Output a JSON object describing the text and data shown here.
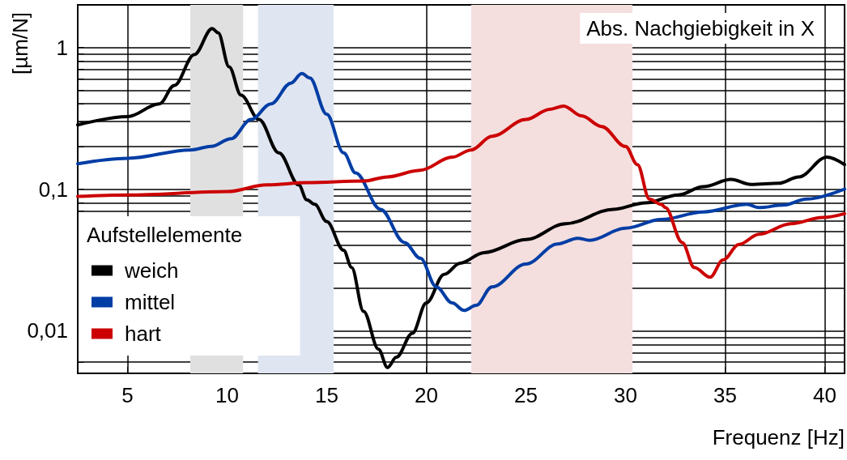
{
  "chart_data": {
    "type": "line",
    "xlabel": "Frequenz [Hz]",
    "ylabel": "[µm/N]",
    "legend_title": "Aufstellelemente",
    "annotations": [
      "Abs. Nachgiebigkeit in X"
    ],
    "xlim": [
      2.5,
      41
    ],
    "xticks": [
      5,
      10,
      15,
      20,
      25,
      30,
      35,
      40
    ],
    "ylim": [
      0.005,
      2
    ],
    "log": "y",
    "yticks": [
      {
        "value": 0.006,
        "label": null
      },
      {
        "value": 0.007,
        "label": null
      },
      {
        "value": 0.008,
        "label": null
      },
      {
        "value": 0.009,
        "label": null
      },
      {
        "value": 0.01,
        "label": "0,01"
      },
      {
        "value": 0.02,
        "label": null
      },
      {
        "value": 0.03,
        "label": null
      },
      {
        "value": 0.04,
        "label": null
      },
      {
        "value": 0.05,
        "label": null
      },
      {
        "value": 0.06,
        "label": null
      },
      {
        "value": 0.07,
        "label": null
      },
      {
        "value": 0.08,
        "label": null
      },
      {
        "value": 0.09,
        "label": null
      },
      {
        "value": 0.1,
        "label": "0,1"
      },
      {
        "value": 0.2,
        "label": null
      },
      {
        "value": 0.3,
        "label": null
      },
      {
        "value": 0.4,
        "label": null
      },
      {
        "value": 0.5,
        "label": null
      },
      {
        "value": 0.6,
        "label": null
      },
      {
        "value": 0.7,
        "label": null
      },
      {
        "value": 0.8,
        "label": null
      },
      {
        "value": 0.9,
        "label": null
      },
      {
        "value": 1,
        "label": "1"
      }
    ],
    "grid": true,
    "legend": "bottom left",
    "marker": "none",
    "line_style": "solid",
    "bands": [
      {
        "axis": "x",
        "from": 8.15,
        "to": 10.8,
        "color": "#e0e0e0"
      },
      {
        "axis": "x",
        "from": 11.55,
        "to": 15.35,
        "color": "#dfe5f1"
      },
      {
        "axis": "x",
        "from": 22.25,
        "to": 30.35,
        "color": "#f5dede"
      }
    ],
    "series": [
      {
        "name": "weich",
        "color": "#000000",
        "x": [
          2.5,
          5,
          6.6,
          7.35,
          8.35,
          9.25,
          9.55,
          10.1,
          10.7,
          11.6,
          12.6,
          13.6,
          14.0,
          14.4,
          15.0,
          15.85,
          16.25,
          16.85,
          17.6,
          18.05,
          18.5,
          19.3,
          20.0,
          20.9,
          21.7,
          22.9,
          25.0,
          27.0,
          29.4,
          31.0,
          32.65,
          33.9,
          35.3,
          36.3,
          37.7,
          38.7,
          40.1,
          41.0
        ],
        "values": [
          0.284,
          0.325,
          0.4,
          0.54,
          0.89,
          1.36,
          1.27,
          0.73,
          0.46,
          0.31,
          0.18,
          0.107,
          0.084,
          0.078,
          0.059,
          0.037,
          0.028,
          0.0137,
          0.0074,
          0.0055,
          0.0065,
          0.0096,
          0.0157,
          0.025,
          0.03,
          0.0356,
          0.044,
          0.057,
          0.072,
          0.08,
          0.091,
          0.104,
          0.117,
          0.108,
          0.11,
          0.122,
          0.168,
          0.149
        ]
      },
      {
        "name": "mittel",
        "color": "#003da5",
        "x": [
          2.5,
          5,
          8.15,
          9.2,
          10.2,
          11.2,
          12.2,
          13.2,
          13.75,
          14.15,
          15.0,
          15.85,
          16.45,
          17.7,
          18.9,
          19.7,
          20.5,
          21.3,
          21.9,
          22.5,
          23.3,
          25.0,
          26.6,
          27.6,
          28.2,
          30.0,
          31.8,
          33.9,
          36.1,
          36.7,
          37.9,
          39.1,
          41.0
        ],
        "values": [
          0.151,
          0.165,
          0.189,
          0.2,
          0.227,
          0.31,
          0.4,
          0.56,
          0.655,
          0.61,
          0.338,
          0.18,
          0.13,
          0.072,
          0.042,
          0.0325,
          0.0204,
          0.0157,
          0.0139,
          0.0151,
          0.0204,
          0.0296,
          0.041,
          0.045,
          0.0435,
          0.053,
          0.061,
          0.069,
          0.078,
          0.074,
          0.077,
          0.085,
          0.1
        ]
      },
      {
        "name": "hart",
        "color": "#cc0000",
        "x": [
          2.5,
          5,
          10.0,
          12.0,
          14.0,
          16.85,
          18.05,
          19.7,
          21.3,
          22.25,
          23.3,
          25.0,
          26.2,
          26.9,
          27.8,
          28.8,
          30.0,
          30.6,
          31.2,
          31.8,
          32.0,
          32.85,
          33.45,
          34.25,
          34.9,
          35.7,
          36.7,
          38.3,
          39.9,
          41.0
        ],
        "values": [
          0.0887,
          0.091,
          0.096,
          0.107,
          0.111,
          0.114,
          0.122,
          0.136,
          0.168,
          0.189,
          0.236,
          0.31,
          0.366,
          0.386,
          0.329,
          0.277,
          0.2,
          0.149,
          0.085,
          0.078,
          0.074,
          0.042,
          0.028,
          0.0239,
          0.0316,
          0.0407,
          0.048,
          0.057,
          0.063,
          0.067
        ]
      }
    ]
  }
}
